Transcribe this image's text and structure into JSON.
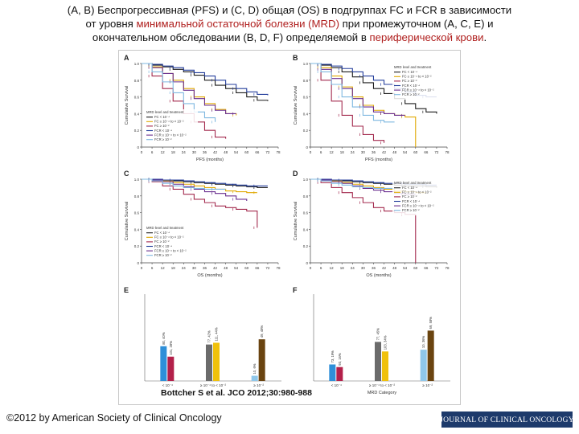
{
  "slide": {
    "title_line1": "(A, B) Беспрогрессивная (PFS) и (C, D) общая (OS) в подгруппах FC и FCR в зависимости",
    "title_line2_pre": "от уровня ",
    "title_line2_hl": "минимальной остаточной болезни (MRD)",
    "title_line2_post": " при промежуточном (A, C, E) и",
    "title_line3_pre": "окончательном обследовании (B, D, F) определяемой в ",
    "title_line3_hl": "периферической крови",
    "title_line3_post": ".",
    "citation": "Bottcher S et al. JCO 2012;30:980-988",
    "copyright": "©2012 by American Society of Clinical Oncology",
    "journal_logo": "JOURNAL OF CLINICAL ONCOLOGY"
  },
  "chart_data": [
    {
      "panel": "A",
      "type": "line",
      "ylabel": "Cumulative Survival",
      "xlabel": "PFS (months)",
      "x_ticks": [
        "0",
        "6",
        "12",
        "18",
        "24",
        "30",
        "36",
        "42",
        "48",
        "54",
        "60",
        "66",
        "72",
        "78"
      ],
      "y_ticks": [
        "0",
        "0.2",
        "0.4",
        "0.6",
        "0.8",
        "1.0"
      ],
      "xlim": [
        0,
        78
      ],
      "ylim": [
        0,
        1
      ],
      "legend_title": "MRD level and treatment",
      "series": [
        {
          "name": "FC < 10⁻⁴",
          "color": "#1c1c1c",
          "x": [
            0,
            6,
            12,
            18,
            24,
            30,
            36,
            42,
            48,
            54,
            60,
            66,
            72
          ],
          "y": [
            1.0,
            0.98,
            0.96,
            0.93,
            0.9,
            0.86,
            0.8,
            0.74,
            0.7,
            0.65,
            0.6,
            0.56,
            0.55
          ]
        },
        {
          "name": "FC ≥ 10⁻⁴ to < 10⁻²",
          "color": "#e0a800",
          "x": [
            0,
            6,
            12,
            18,
            24,
            30,
            36,
            42,
            48,
            54
          ],
          "y": [
            1.0,
            0.96,
            0.88,
            0.8,
            0.7,
            0.6,
            0.52,
            0.45,
            0.4,
            0.38
          ]
        },
        {
          "name": "FC ≥ 10⁻²",
          "color": "#a32a4e",
          "x": [
            0,
            6,
            12,
            18,
            24,
            30,
            36,
            42,
            48
          ],
          "y": [
            1.0,
            0.85,
            0.7,
            0.55,
            0.4,
            0.3,
            0.2,
            0.12,
            0.1
          ]
        },
        {
          "name": "FCR < 10⁻⁴",
          "color": "#243e9c",
          "x": [
            0,
            6,
            12,
            18,
            24,
            30,
            36,
            42,
            48,
            54,
            60,
            66,
            72
          ],
          "y": [
            1.0,
            0.99,
            0.97,
            0.95,
            0.92,
            0.89,
            0.85,
            0.8,
            0.75,
            0.7,
            0.66,
            0.63,
            0.62
          ]
        },
        {
          "name": "FCR ≥ 10⁻⁴ to < 10⁻²",
          "color": "#6a2f8f",
          "x": [
            0,
            6,
            12,
            18,
            24,
            30,
            36,
            42,
            48,
            54
          ],
          "y": [
            1.0,
            0.95,
            0.88,
            0.78,
            0.68,
            0.58,
            0.5,
            0.44,
            0.4,
            0.4
          ]
        },
        {
          "name": "FCR ≥ 10⁻²",
          "color": "#7fb8e0",
          "x": [
            0,
            6,
            12,
            18,
            24,
            30,
            36,
            42
          ],
          "y": [
            1.0,
            0.9,
            0.78,
            0.65,
            0.52,
            0.42,
            0.35,
            0.3
          ]
        }
      ]
    },
    {
      "panel": "B",
      "type": "line",
      "ylabel": "Cumulative Survival",
      "xlabel": "PFS (months)",
      "x_ticks": [
        "0",
        "6",
        "12",
        "18",
        "24",
        "30",
        "36",
        "42",
        "48",
        "54",
        "60",
        "66",
        "72",
        "78"
      ],
      "y_ticks": [
        "0",
        "0.2",
        "0.4",
        "0.6",
        "0.8",
        "1.0"
      ],
      "xlim": [
        0,
        78
      ],
      "ylim": [
        0,
        1
      ],
      "legend_title": "MRD level and treatment",
      "series": [
        {
          "name": "FC < 10⁻⁴",
          "color": "#1c1c1c",
          "x": [
            0,
            6,
            12,
            18,
            24,
            30,
            36,
            42,
            48,
            54,
            60,
            66,
            72
          ],
          "y": [
            1.0,
            0.98,
            0.95,
            0.9,
            0.84,
            0.77,
            0.7,
            0.64,
            0.58,
            0.52,
            0.46,
            0.42,
            0.4
          ]
        },
        {
          "name": "FC ≥ 10⁻⁴ to < 10⁻²",
          "color": "#e0a800",
          "x": [
            0,
            6,
            12,
            18,
            24,
            30,
            36,
            42,
            48,
            54,
            60
          ],
          "y": [
            1.0,
            0.95,
            0.85,
            0.72,
            0.6,
            0.5,
            0.44,
            0.4,
            0.38,
            0.36,
            0.0
          ]
        },
        {
          "name": "FC ≥ 10⁻²",
          "color": "#a32a4e",
          "x": [
            0,
            6,
            12,
            18,
            24,
            30,
            36,
            42
          ],
          "y": [
            1.0,
            0.8,
            0.55,
            0.38,
            0.25,
            0.15,
            0.08,
            0.05
          ]
        },
        {
          "name": "FCR < 10⁻⁴",
          "color": "#243e9c",
          "x": [
            0,
            6,
            12,
            18,
            24,
            30,
            36,
            42,
            48,
            54,
            60,
            66,
            72
          ],
          "y": [
            1.0,
            0.99,
            0.97,
            0.94,
            0.9,
            0.85,
            0.8,
            0.75,
            0.7,
            0.66,
            0.62,
            0.6,
            0.6
          ]
        },
        {
          "name": "FCR ≥ 10⁻⁴ to < 10⁻²",
          "color": "#6a2f8f",
          "x": [
            0,
            6,
            12,
            18,
            24,
            30,
            36,
            42,
            48,
            54
          ],
          "y": [
            1.0,
            0.93,
            0.82,
            0.7,
            0.58,
            0.48,
            0.42,
            0.4,
            0.38,
            0.38
          ]
        },
        {
          "name": "FCR ≥ 10⁻²",
          "color": "#7fb8e0",
          "x": [
            0,
            6,
            12,
            18,
            24,
            30,
            36,
            42,
            48
          ],
          "y": [
            1.0,
            0.9,
            0.75,
            0.6,
            0.48,
            0.38,
            0.32,
            0.3,
            0.3
          ]
        }
      ]
    },
    {
      "panel": "C",
      "type": "line",
      "ylabel": "Cumulative Survival",
      "xlabel": "OS (months)",
      "x_ticks": [
        "0",
        "6",
        "12",
        "18",
        "24",
        "30",
        "36",
        "42",
        "48",
        "54",
        "60",
        "66",
        "72",
        "78"
      ],
      "y_ticks": [
        "0",
        "0.2",
        "0.4",
        "0.6",
        "0.8",
        "1.0"
      ],
      "xlim": [
        0,
        78
      ],
      "ylim": [
        0,
        1
      ],
      "legend_title": "MRD level and treatment",
      "series": [
        {
          "name": "FC < 10⁻⁴",
          "color": "#1c1c1c",
          "x": [
            0,
            6,
            12,
            18,
            24,
            30,
            36,
            42,
            48,
            54,
            60,
            66,
            72
          ],
          "y": [
            1.0,
            1.0,
            0.99,
            0.98,
            0.97,
            0.96,
            0.95,
            0.94,
            0.93,
            0.92,
            0.91,
            0.9,
            0.9
          ]
        },
        {
          "name": "FC ≥ 10⁻⁴ to < 10⁻²",
          "color": "#e0a800",
          "x": [
            0,
            6,
            12,
            18,
            24,
            30,
            36,
            42,
            48,
            54,
            60,
            66
          ],
          "y": [
            1.0,
            0.99,
            0.98,
            0.96,
            0.94,
            0.92,
            0.9,
            0.88,
            0.86,
            0.85,
            0.84,
            0.84
          ]
        },
        {
          "name": "FC ≥ 10⁻²",
          "color": "#a32a4e",
          "x": [
            0,
            6,
            12,
            18,
            24,
            30,
            36,
            42,
            48,
            54,
            60,
            66
          ],
          "y": [
            1.0,
            0.97,
            0.92,
            0.88,
            0.82,
            0.76,
            0.72,
            0.68,
            0.66,
            0.64,
            0.62,
            0.42
          ]
        },
        {
          "name": "FCR < 10⁻⁴",
          "color": "#243e9c",
          "x": [
            0,
            6,
            12,
            18,
            24,
            30,
            36,
            42,
            48,
            54,
            60,
            66,
            72
          ],
          "y": [
            1.0,
            1.0,
            0.99,
            0.99,
            0.98,
            0.97,
            0.96,
            0.95,
            0.94,
            0.93,
            0.92,
            0.92,
            0.92
          ]
        },
        {
          "name": "FCR ≥ 10⁻⁴ to < 10⁻²",
          "color": "#6a2f8f",
          "x": [
            0,
            6,
            12,
            18,
            24,
            30,
            36,
            42,
            48,
            54,
            60
          ],
          "y": [
            1.0,
            0.99,
            0.97,
            0.94,
            0.91,
            0.88,
            0.85,
            0.83,
            0.8,
            0.76,
            0.74
          ]
        },
        {
          "name": "FCR ≥ 10⁻²",
          "color": "#7fb8e0",
          "x": [
            0,
            6,
            12,
            18,
            24,
            30,
            36,
            42,
            48
          ],
          "y": [
            1.0,
            0.98,
            0.95,
            0.92,
            0.9,
            0.89,
            0.88,
            0.88,
            0.88
          ]
        }
      ]
    },
    {
      "panel": "D",
      "type": "line",
      "ylabel": "Cumulative Survival",
      "xlabel": "OS (months)",
      "x_ticks": [
        "0",
        "6",
        "12",
        "18",
        "24",
        "30",
        "36",
        "42",
        "48",
        "54",
        "60",
        "66",
        "72",
        "78"
      ],
      "y_ticks": [
        "0",
        "0.2",
        "0.4",
        "0.6",
        "0.8",
        "1.0"
      ],
      "xlim": [
        0,
        78
      ],
      "ylim": [
        0,
        1
      ],
      "legend_title": "MRD level and treatment",
      "series": [
        {
          "name": "FC < 10⁻⁴",
          "color": "#1c1c1c",
          "x": [
            0,
            6,
            12,
            18,
            24,
            30,
            36,
            42,
            48,
            54,
            60,
            66,
            72
          ],
          "y": [
            1.0,
            1.0,
            0.99,
            0.98,
            0.97,
            0.96,
            0.95,
            0.94,
            0.93,
            0.92,
            0.92,
            0.91,
            0.9
          ]
        },
        {
          "name": "FC ≥ 10⁻⁴ to < 10⁻²",
          "color": "#e0a800",
          "x": [
            0,
            6,
            12,
            18,
            24,
            30,
            36,
            42,
            48,
            54,
            60,
            66
          ],
          "y": [
            1.0,
            0.99,
            0.98,
            0.96,
            0.94,
            0.92,
            0.9,
            0.88,
            0.86,
            0.85,
            0.84,
            0.84
          ]
        },
        {
          "name": "FC ≥ 10⁻²",
          "color": "#a32a4e",
          "x": [
            0,
            6,
            12,
            18,
            24,
            30,
            36,
            42,
            48,
            54,
            60
          ],
          "y": [
            1.0,
            0.96,
            0.9,
            0.84,
            0.78,
            0.72,
            0.66,
            0.62,
            0.6,
            0.58,
            0.0
          ]
        },
        {
          "name": "FCR < 10⁻⁴",
          "color": "#243e9c",
          "x": [
            0,
            6,
            12,
            18,
            24,
            30,
            36,
            42,
            48,
            54,
            60,
            66,
            72
          ],
          "y": [
            1.0,
            1.0,
            0.99,
            0.99,
            0.98,
            0.97,
            0.96,
            0.95,
            0.95,
            0.94,
            0.94,
            0.93,
            0.93
          ]
        },
        {
          "name": "FCR ≥ 10⁻⁴ to < 10⁻²",
          "color": "#6a2f8f",
          "x": [
            0,
            6,
            12,
            18,
            24,
            30,
            36,
            42,
            48,
            54,
            60
          ],
          "y": [
            1.0,
            0.99,
            0.97,
            0.95,
            0.92,
            0.89,
            0.87,
            0.85,
            0.83,
            0.82,
            0.82
          ]
        },
        {
          "name": "FCR ≥ 10⁻²",
          "color": "#7fb8e0",
          "x": [
            0,
            6,
            12,
            18,
            24,
            30,
            36,
            42,
            48
          ],
          "y": [
            1.0,
            0.98,
            0.95,
            0.93,
            0.91,
            0.9,
            0.89,
            0.89,
            0.89
          ]
        }
      ]
    },
    {
      "panel": "E",
      "type": "bar",
      "ylim": [
        0,
        100
      ],
      "groups": [
        {
          "label": "< 10⁻⁴",
          "bars": [
            {
              "label": "80, 40%",
              "value": 40,
              "color": "#2e8fd8"
            },
            {
              "label": "101, 28%",
              "value": 28,
              "color": "#b3204a"
            }
          ]
        },
        {
          "label": "≥ 10⁻⁴ to < 10⁻²",
          "bars": [
            {
              "label": "77, 42%",
              "value": 42,
              "color": "#6b6b6b"
            },
            {
              "label": "111, 44%",
              "value": 44,
              "color": "#f0c10c"
            }
          ]
        },
        {
          "label": "≥ 10⁻²",
          "bars": [
            {
              "label": "10, 6%",
              "value": 6,
              "color": "#8fc7ea"
            },
            {
              "label": "49, 48%",
              "value": 48,
              "color": "#6a4410"
            }
          ]
        }
      ]
    },
    {
      "panel": "F",
      "type": "bar",
      "xlabel": "MRD Category",
      "ylim": [
        0,
        100
      ],
      "groups": [
        {
          "label": "< 10⁻⁴",
          "bars": [
            {
              "label": "73, 19%",
              "value": 19,
              "color": "#2e8fd8"
            },
            {
              "label": "93, 16%",
              "value": 16,
              "color": "#b3204a"
            }
          ]
        },
        {
          "label": "≥ 10⁻⁴ to < 10⁻²",
          "bars": [
            {
              "label": "77, 45%",
              "value": 45,
              "color": "#6b6b6b"
            },
            {
              "label": "103, 34%",
              "value": 34,
              "color": "#f0c10c"
            }
          ]
        },
        {
          "label": "≥ 10⁻²",
          "bars": [
            {
              "label": "10, 36%",
              "value": 36,
              "color": "#8fc7ea"
            },
            {
              "label": "69, 58%",
              "value": 58,
              "color": "#6a4410"
            }
          ]
        }
      ]
    }
  ]
}
